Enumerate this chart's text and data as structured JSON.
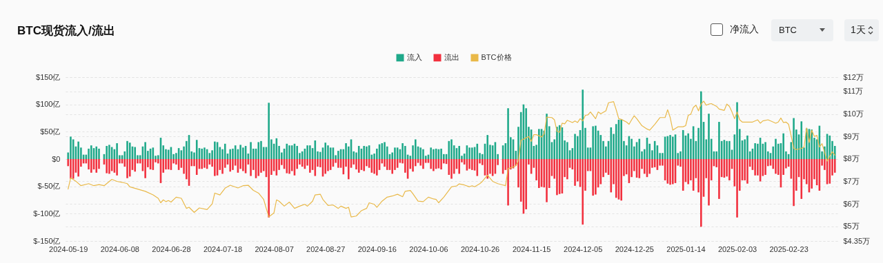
{
  "chart_data": {
    "type": "bar",
    "title": "BTC现货流入/流出",
    "legend": "top",
    "grid": true,
    "annotations": [
      "净流入",
      "BTC",
      "1天"
    ],
    "x": [
      "2024-05-19",
      "2024-05-20",
      "2024-05-21",
      "2024-05-22",
      "2024-05-23",
      "2024-05-24",
      "2024-05-25",
      "2024-05-26",
      "2024-05-27",
      "2024-05-28",
      "2024-05-29",
      "2024-05-30",
      "2024-05-31",
      "2024-06-01",
      "2024-06-02",
      "2024-06-03",
      "2024-06-04",
      "2024-06-05",
      "2024-06-06",
      "2024-06-07",
      "2024-06-08",
      "2024-06-09",
      "2024-06-10",
      "2024-06-11",
      "2024-06-12",
      "2024-06-13",
      "2024-06-14",
      "2024-06-15",
      "2024-06-16",
      "2024-06-17",
      "2024-06-18",
      "2024-06-19",
      "2024-06-20",
      "2024-06-21",
      "2024-06-22",
      "2024-06-23",
      "2024-06-24",
      "2024-06-25",
      "2024-06-26",
      "2024-06-27",
      "2024-06-28",
      "2024-06-29",
      "2024-06-30",
      "2024-07-01",
      "2024-07-02",
      "2024-07-03",
      "2024-07-04",
      "2024-07-05",
      "2024-07-06",
      "2024-07-07",
      "2024-07-08",
      "2024-07-09",
      "2024-07-10",
      "2024-07-11",
      "2024-07-12",
      "2024-07-13",
      "2024-07-14",
      "2024-07-15",
      "2024-07-16",
      "2024-07-17",
      "2024-07-18",
      "2024-07-19",
      "2024-07-20",
      "2024-07-21",
      "2024-07-22",
      "2024-07-23",
      "2024-07-24",
      "2024-07-25",
      "2024-07-26",
      "2024-07-27",
      "2024-07-28",
      "2024-07-29",
      "2024-07-30",
      "2024-07-31",
      "2024-08-01",
      "2024-08-02",
      "2024-08-03",
      "2024-08-04",
      "2024-08-05",
      "2024-08-06",
      "2024-08-07",
      "2024-08-08",
      "2024-08-09",
      "2024-08-10",
      "2024-08-11",
      "2024-08-12",
      "2024-08-13",
      "2024-08-14",
      "2024-08-15",
      "2024-08-16",
      "2024-08-17",
      "2024-08-18",
      "2024-08-19",
      "2024-08-20",
      "2024-08-21",
      "2024-08-22",
      "2024-08-23",
      "2024-08-24",
      "2024-08-25",
      "2024-08-26",
      "2024-08-27",
      "2024-08-28",
      "2024-08-29",
      "2024-08-30",
      "2024-08-31",
      "2024-09-01",
      "2024-09-02",
      "2024-09-03",
      "2024-09-04",
      "2024-09-05",
      "2024-09-06",
      "2024-09-07",
      "2024-09-08",
      "2024-09-09",
      "2024-09-10",
      "2024-09-11",
      "2024-09-12",
      "2024-09-13",
      "2024-09-14",
      "2024-09-15",
      "2024-09-16",
      "2024-09-17",
      "2024-09-18",
      "2024-09-19",
      "2024-09-20",
      "2024-09-21",
      "2024-09-22",
      "2024-09-23",
      "2024-09-24",
      "2024-09-25",
      "2024-09-26",
      "2024-09-27",
      "2024-09-28",
      "2024-09-29",
      "2024-09-30",
      "2024-10-01",
      "2024-10-02",
      "2024-10-03",
      "2024-10-04",
      "2024-10-05",
      "2024-10-06",
      "2024-10-07",
      "2024-10-08",
      "2024-10-09",
      "2024-10-10",
      "2024-10-11",
      "2024-10-12",
      "2024-10-13",
      "2024-10-14",
      "2024-10-15",
      "2024-10-16",
      "2024-10-17",
      "2024-10-18",
      "2024-10-19",
      "2024-10-20",
      "2024-10-21",
      "2024-10-22",
      "2024-10-23",
      "2024-10-24",
      "2024-10-25",
      "2024-10-26",
      "2024-10-27",
      "2024-10-28",
      "2024-10-29",
      "2024-10-30",
      "2024-10-31",
      "2024-11-01",
      "2024-11-02",
      "2024-11-03",
      "2024-11-04",
      "2024-11-05",
      "2024-11-06",
      "2024-11-07",
      "2024-11-08",
      "2024-11-09",
      "2024-11-10",
      "2024-11-11",
      "2024-11-12",
      "2024-11-13",
      "2024-11-14",
      "2024-11-15",
      "2024-11-16",
      "2024-11-17",
      "2024-11-18",
      "2024-11-19",
      "2024-11-20",
      "2024-11-21",
      "2024-11-22",
      "2024-11-23",
      "2024-11-24",
      "2024-11-25",
      "2024-11-26",
      "2024-11-27",
      "2024-11-28",
      "2024-11-29",
      "2024-11-30",
      "2024-12-01",
      "2024-12-02",
      "2024-12-03",
      "2024-12-04",
      "2024-12-05",
      "2024-12-06",
      "2024-12-07",
      "2024-12-08",
      "2024-12-09",
      "2024-12-10",
      "2024-12-11",
      "2024-12-12",
      "2024-12-13",
      "2024-12-14",
      "2024-12-15",
      "2024-12-16",
      "2024-12-17",
      "2024-12-18",
      "2024-12-19",
      "2024-12-20",
      "2024-12-21",
      "2024-12-22",
      "2024-12-23",
      "2024-12-24",
      "2024-12-25",
      "2024-12-26",
      "2024-12-27",
      "2024-12-28",
      "2024-12-29",
      "2024-12-30",
      "2024-12-31",
      "2025-01-01",
      "2025-01-02",
      "2025-01-03",
      "2025-01-04",
      "2025-01-05",
      "2025-01-06",
      "2025-01-07",
      "2025-01-08",
      "2025-01-09",
      "2025-01-10",
      "2025-01-11",
      "2025-01-12",
      "2025-01-13",
      "2025-01-14",
      "2025-01-15",
      "2025-01-16",
      "2025-01-17",
      "2025-01-18",
      "2025-01-19",
      "2025-01-20",
      "2025-01-21",
      "2025-01-22",
      "2025-01-23",
      "2025-01-24",
      "2025-01-25",
      "2025-01-26",
      "2025-01-27",
      "2025-01-28",
      "2025-01-29",
      "2025-01-30",
      "2025-01-31",
      "2025-02-01",
      "2025-02-02",
      "2025-02-03",
      "2025-02-04",
      "2025-02-05",
      "2025-02-06",
      "2025-02-07",
      "2025-02-08",
      "2025-02-09",
      "2025-02-10",
      "2025-02-11",
      "2025-02-12",
      "2025-02-13",
      "2025-02-14",
      "2025-02-15",
      "2025-02-16",
      "2025-02-17",
      "2025-02-18",
      "2025-02-19",
      "2025-02-20",
      "2025-02-21",
      "2025-02-22",
      "2025-02-23",
      "2025-02-24",
      "2025-02-25",
      "2025-02-26",
      "2025-02-27",
      "2025-02-28",
      "2025-03-01",
      "2025-03-02",
      "2025-03-03",
      "2025-03-04",
      "2025-03-05",
      "2025-03-06",
      "2025-03-07",
      "2025-03-08",
      "2025-03-09",
      "2025-03-10",
      "2025-03-11",
      "2025-03-12",
      "2025-03-13"
    ],
    "xlim": [
      "2024-05-18",
      "2025-03-14"
    ],
    "stacked": true,
    "xticks": [
      "2024-05-19",
      "2024-06-08",
      "2024-06-28",
      "2024-07-18",
      "2024-08-07",
      "2024-08-27",
      "2024-09-16",
      "2024-10-06",
      "2024-10-26",
      "2024-11-15",
      "2024-12-05",
      "2024-12-25",
      "2025-01-14",
      "2025-02-03",
      "2025-02-23"
    ],
    "ylim": [
      -150,
      150
    ],
    "yticks": [
      {
        "value": -150,
        "label": "$-150亿"
      },
      {
        "value": -100,
        "label": "$-100亿"
      },
      {
        "value": -50,
        "label": "$-50亿"
      },
      {
        "value": 0,
        "label": "$0"
      },
      {
        "value": 50,
        "label": "$50亿"
      },
      {
        "value": 100,
        "label": "$100亿"
      },
      {
        "value": 150,
        "label": "$150亿"
      }
    ],
    "y2lim": [
      4.35,
      11.64
    ],
    "y2ticks": [
      {
        "value": 4.35,
        "label": "$4.35万"
      },
      {
        "value": 5,
        "label": "$5万"
      },
      {
        "value": 6,
        "label": "$6万"
      },
      {
        "value": 7,
        "label": "$7万"
      },
      {
        "value": 8,
        "label": "$8万"
      },
      {
        "value": 9,
        "label": "$9万"
      },
      {
        "value": 10,
        "label": "$10万"
      },
      {
        "value": 11,
        "label": "$11万"
      },
      {
        "value": 11.64,
        "label": "$12万"
      }
    ],
    "series": [
      {
        "name": "流入",
        "color": "#1fa98a",
        "values": [
          12,
          41,
          36,
          23,
          32,
          21,
          8,
          8,
          19,
          25,
          20,
          23,
          19,
          null,
          9,
          24,
          26,
          22,
          18,
          29,
          7,
          7,
          14,
          33,
          30,
          23,
          22,
          7,
          7,
          23,
          31,
          15,
          19,
          21,
          6,
          7,
          39,
          25,
          18,
          17,
          22,
          9,
          11,
          20,
          16,
          23,
          33,
          44,
          14,
          12,
          35,
          20,
          19,
          21,
          18,
          11,
          16,
          32,
          31,
          22,
          18,
          28,
          10,
          18,
          19,
          25,
          18,
          26,
          21,
          24,
          10,
          31,
          19,
          19,
          31,
          33,
          22,
          22,
          103,
          36,
          28,
          38,
          24,
          12,
          19,
          28,
          25,
          25,
          28,
          24,
          11,
          14,
          19,
          25,
          25,
          20,
          34,
          14,
          13,
          21,
          30,
          25,
          21,
          21,
          7,
          15,
          18,
          18,
          29,
          23,
          36,
          14,
          12,
          24,
          19,
          24,
          23,
          25,
          8,
          10,
          19,
          27,
          29,
          31,
          23,
          9,
          12,
          21,
          21,
          18,
          29,
          24,
          8,
          6,
          25,
          36,
          23,
          21,
          18,
          6,
          8,
          21,
          18,
          19,
          18,
          19,
          9,
          9,
          33,
          36,
          25,
          20,
          24,
          6,
          10,
          25,
          21,
          21,
          22,
          28,
          11,
          9,
          28,
          44,
          26,
          25,
          31,
          9,
          null,
          25,
          29,
          93,
          40,
          36,
          15,
          59,
          86,
          100,
          93,
          59,
          54,
          24,
          26,
          55,
          55,
          52,
          83,
          60,
          31,
          36,
          59,
          62,
          58,
          34,
          31,
          16,
          20,
          46,
          42,
          53,
          127,
          57,
          21,
          21,
          60,
          61,
          52,
          44,
          33,
          23,
          33,
          58,
          46,
          64,
          72,
          72,
          33,
          25,
          42,
          37,
          23,
          31,
          37,
          14,
          18,
          39,
          28,
          16,
          33,
          25,
          11,
          11,
          41,
          42,
          44,
          41,
          45,
          11,
          14,
          53,
          43,
          47,
          37,
          60,
          33,
          57,
          124,
          68,
          36,
          83,
          37,
          14,
          14,
          68,
          33,
          35,
          33,
          33,
          17,
          45,
          104,
          55,
          34,
          36,
          43,
          14,
          19,
          29,
          28,
          39,
          28,
          31,
          14,
          11,
          23,
          37,
          28,
          29,
          47,
          14,
          9,
          31,
          75,
          54,
          45,
          69,
          21,
          56,
          55,
          54,
          39,
          36,
          61,
          14,
          23,
          46,
          43,
          33,
          24
        ]
      },
      {
        "name": "流出",
        "color": "#f2303e",
        "values": [
          -13,
          -36,
          -36,
          -25,
          -32,
          -14,
          -8,
          -8,
          -19,
          -25,
          -19,
          -25,
          -18,
          null,
          -10,
          -26,
          -27,
          -22,
          -25,
          -30,
          -8,
          -8,
          -14,
          -35,
          -32,
          -20,
          -23,
          -8,
          -8,
          -22,
          -35,
          -15,
          -19,
          -20,
          -6,
          -8,
          -44,
          -25,
          -19,
          -19,
          -20,
          -8,
          -10,
          -20,
          -16,
          -27,
          -37,
          -49,
          -13,
          -13,
          -29,
          -18,
          -18,
          -16,
          -18,
          -10,
          -14,
          -31,
          -30,
          -20,
          -27,
          -16,
          -10,
          -23,
          -20,
          -12,
          -25,
          -18,
          -22,
          -26,
          -10,
          -31,
          -20,
          -35,
          -31,
          -25,
          -22,
          -33,
          -107,
          -29,
          -22,
          -30,
          -20,
          -11,
          -18,
          -26,
          -27,
          -22,
          -30,
          -18,
          -10,
          -14,
          -18,
          -12,
          -25,
          -20,
          -31,
          -14,
          -15,
          -32,
          -27,
          -22,
          -20,
          -14,
          -7,
          -16,
          -16,
          -28,
          -14,
          -37,
          -16,
          -10,
          -19,
          -25,
          -20,
          -22,
          -13,
          -16,
          -25,
          -27,
          -30,
          -20,
          -8,
          -14,
          -20,
          -20,
          -27,
          -20,
          -16,
          -7,
          -8,
          -25,
          -36,
          -18,
          -23,
          -13,
          -7,
          -12,
          -18,
          -7,
          -7,
          -18,
          -22,
          -18,
          -17,
          -19,
          -8,
          -9,
          -29,
          -36,
          -27,
          -18,
          -27,
          -6,
          -10,
          -21,
          -18,
          -20,
          -21,
          -31,
          -8,
          -11,
          -30,
          -36,
          -27,
          -31,
          -27,
          -11,
          null,
          -27,
          -20,
          -85,
          -19,
          -17,
          -12,
          -52,
          -78,
          -100,
          -92,
          -10,
          -27,
          -16,
          -39,
          -53,
          -51,
          -52,
          -79,
          -53,
          -31,
          -36,
          -66,
          -64,
          -63,
          -33,
          -37,
          -16,
          -19,
          -49,
          -41,
          -51,
          -120,
          -58,
          -22,
          -22,
          -67,
          -65,
          -52,
          -46,
          -33,
          -25,
          -29,
          -61,
          -46,
          -71,
          -74,
          -76,
          -31,
          -28,
          -44,
          -33,
          -22,
          -34,
          -35,
          -18,
          -27,
          -33,
          -27,
          -16,
          -15,
          -20,
          -12,
          -12,
          -39,
          -45,
          -47,
          -46,
          -44,
          -12,
          -14,
          -58,
          -42,
          -46,
          -39,
          -58,
          -35,
          -61,
          -124,
          -69,
          -35,
          -85,
          -39,
          -13,
          -15,
          -73,
          -33,
          -34,
          -32,
          -39,
          -18,
          -50,
          -107,
          -58,
          -39,
          -39,
          -45,
          -14,
          -20,
          -30,
          -30,
          -41,
          -31,
          -29,
          -13,
          -12,
          -18,
          -27,
          -29,
          -52,
          -29,
          -17,
          -14,
          -36,
          -86,
          -58,
          -33,
          -73,
          -37,
          -46,
          -61,
          -54,
          -37,
          -48,
          -58,
          -12,
          -20,
          -46,
          -45,
          -30,
          -25
        ]
      },
      {
        "name": "BTC价格",
        "type": "line",
        "axis": "y2",
        "color": "#e9b949",
        "x": [
          "2024-05-19",
          "2024-05-20",
          "2024-05-22",
          "2024-05-24",
          "2024-05-27",
          "2024-05-29",
          "2024-05-31",
          "2024-06-02",
          "2024-06-05",
          "2024-06-07",
          "2024-06-09",
          "2024-06-11",
          "2024-06-12",
          "2024-06-15",
          "2024-06-18",
          "2024-06-21",
          "2024-06-23",
          "2024-06-24",
          "2024-06-25",
          "2024-06-26",
          "2024-06-27",
          "2024-06-28",
          "2024-06-30",
          "2024-07-02",
          "2024-07-04",
          "2024-07-05",
          "2024-07-07",
          "2024-07-09",
          "2024-07-12",
          "2024-07-14",
          "2024-07-15",
          "2024-07-17",
          "2024-07-19",
          "2024-07-21",
          "2024-07-24",
          "2024-07-26",
          "2024-07-28",
          "2024-07-30",
          "2024-08-01",
          "2024-08-03",
          "2024-08-04",
          "2024-08-05",
          "2024-08-07",
          "2024-08-08",
          "2024-08-09",
          "2024-08-11",
          "2024-08-13",
          "2024-08-15",
          "2024-08-17",
          "2024-08-19",
          "2024-08-20",
          "2024-08-22",
          "2024-08-23",
          "2024-08-25",
          "2024-08-26",
          "2024-08-28",
          "2024-08-30",
          "2024-09-01",
          "2024-09-02",
          "2024-09-04",
          "2024-09-05",
          "2024-09-06",
          "2024-09-08",
          "2024-09-10",
          "2024-09-12",
          "2024-09-13",
          "2024-09-15",
          "2024-09-16",
          "2024-09-18",
          "2024-09-20",
          "2024-09-22",
          "2024-09-24",
          "2024-09-26",
          "2024-09-27",
          "2024-09-29",
          "2024-09-30",
          "2024-10-02",
          "2024-10-04",
          "2024-10-05",
          "2024-10-06",
          "2024-10-08",
          "2024-10-09",
          "2024-10-10",
          "2024-10-12",
          "2024-10-15",
          "2024-10-17",
          "2024-10-18",
          "2024-10-20",
          "2024-10-22",
          "2024-10-23",
          "2024-10-24",
          "2024-10-26",
          "2024-10-27",
          "2024-10-29",
          "2024-10-31",
          "2024-11-02",
          "2024-11-04",
          "2024-11-05",
          "2024-11-06",
          "2024-11-08",
          "2024-11-09",
          "2024-11-10",
          "2024-11-11",
          "2024-11-12",
          "2024-11-14",
          "2024-11-15",
          "2024-11-16",
          "2024-11-17",
          "2024-11-19",
          "2024-11-20",
          "2024-11-21",
          "2024-11-23",
          "2024-11-24",
          "2024-11-25",
          "2024-11-26",
          "2024-11-27",
          "2024-11-28",
          "2024-11-29",
          "2024-12-01",
          "2024-12-02",
          "2024-12-03",
          "2024-12-04",
          "2024-12-05",
          "2024-12-06",
          "2024-12-07",
          "2024-12-08",
          "2024-12-10",
          "2024-12-11",
          "2024-12-12",
          "2024-12-14",
          "2024-12-15",
          "2024-12-17",
          "2024-12-18",
          "2024-12-19",
          "2024-12-20",
          "2024-12-22",
          "2024-12-23",
          "2024-12-24",
          "2024-12-25",
          "2024-12-26",
          "2024-12-28",
          "2024-12-30",
          "2024-12-31",
          "2025-01-02",
          "2025-01-04",
          "2025-01-06",
          "2025-01-07",
          "2025-01-08",
          "2025-01-09",
          "2025-01-11",
          "2025-01-13",
          "2025-01-14",
          "2025-01-15",
          "2025-01-16",
          "2025-01-17",
          "2025-01-18",
          "2025-01-19",
          "2025-01-20",
          "2025-01-21",
          "2025-01-22",
          "2025-01-23",
          "2025-01-24",
          "2025-01-26",
          "2025-01-27",
          "2025-01-29",
          "2025-01-30",
          "2025-01-31",
          "2025-02-01",
          "2025-02-02",
          "2025-02-03",
          "2025-02-04",
          "2025-02-05",
          "2025-02-07",
          "2025-02-09",
          "2025-02-11",
          "2025-02-12",
          "2025-02-13",
          "2025-02-15",
          "2025-02-17",
          "2025-02-18",
          "2025-02-19",
          "2025-02-20",
          "2025-02-21",
          "2025-02-22",
          "2025-02-23",
          "2025-02-24",
          "2025-02-25",
          "2025-02-26",
          "2025-02-27",
          "2025-02-28",
          "2025-03-01",
          "2025-03-02",
          "2025-03-03",
          "2025-03-04",
          "2025-03-05",
          "2025-03-06",
          "2025-03-07",
          "2025-03-08",
          "2025-03-10",
          "2025-03-11",
          "2025-03-12",
          "2025-03-13"
        ],
        "values": [
          6.66,
          7.16,
          7.01,
          6.81,
          6.9,
          6.81,
          6.86,
          6.81,
          7.09,
          7.0,
          6.96,
          6.9,
          6.76,
          6.66,
          6.56,
          6.4,
          6.25,
          6.05,
          6.18,
          6.1,
          6.15,
          6.08,
          6.3,
          6.25,
          5.8,
          5.85,
          5.62,
          5.82,
          5.75,
          6.0,
          6.48,
          6.4,
          6.7,
          6.83,
          6.71,
          6.81,
          6.83,
          6.6,
          6.48,
          6.2,
          5.8,
          5.42,
          5.6,
          6.18,
          6.12,
          5.9,
          6.08,
          5.8,
          5.9,
          5.98,
          5.9,
          6.12,
          6.4,
          6.43,
          6.2,
          5.93,
          5.95,
          5.8,
          5.9,
          5.8,
          5.85,
          5.42,
          5.46,
          5.7,
          5.8,
          6.05,
          5.98,
          5.85,
          6.12,
          6.3,
          6.35,
          6.43,
          6.32,
          6.56,
          6.6,
          6.45,
          6.12,
          6.1,
          6.2,
          6.3,
          6.22,
          6.2,
          6.05,
          6.3,
          6.76,
          6.8,
          6.89,
          6.84,
          6.76,
          6.81,
          6.76,
          6.9,
          7.0,
          7.28,
          7.0,
          6.9,
          6.84,
          6.81,
          7.57,
          7.64,
          7.7,
          7.92,
          8.83,
          8.88,
          9.0,
          8.78,
          9.08,
          9.08,
          8.98,
          9.11,
          9.86,
          9.84,
          9.74,
          9.23,
          9.18,
          9.59,
          9.56,
          9.72,
          9.62,
          9.69,
          9.62,
          9.79,
          9.69,
          9.94,
          9.96,
          10.09,
          9.79,
          10.09,
          10.01,
          10.14,
          10.5,
          10.55,
          10.19,
          9.79,
          9.76,
          9.64,
          9.54,
          9.74,
          9.92,
          9.79,
          9.48,
          9.33,
          9.28,
          9.54,
          9.84,
          9.84,
          10.19,
          9.84,
          9.28,
          9.43,
          9.43,
          9.48,
          9.94,
          9.99,
          10.29,
          10.39,
          10.14,
          10.44,
          10.57,
          10.39,
          10.44,
          10.46,
          10.34,
          10.22,
          10.16,
          10.44,
          10.34,
          10.09,
          9.79,
          10.09,
          9.74,
          9.64,
          9.64,
          9.64,
          9.74,
          9.59,
          9.69,
          9.74,
          9.64,
          9.59,
          9.64,
          9.82,
          9.62,
          9.64,
          9.54,
          9.03,
          8.47,
          8.42,
          8.44,
          8.47,
          8.53,
          9.38,
          8.73,
          9.28,
          9.0,
          9.05,
          8.53,
          8.68,
          7.9,
          8.12,
          8.32,
          8.17
        ]
      }
    ]
  }
}
